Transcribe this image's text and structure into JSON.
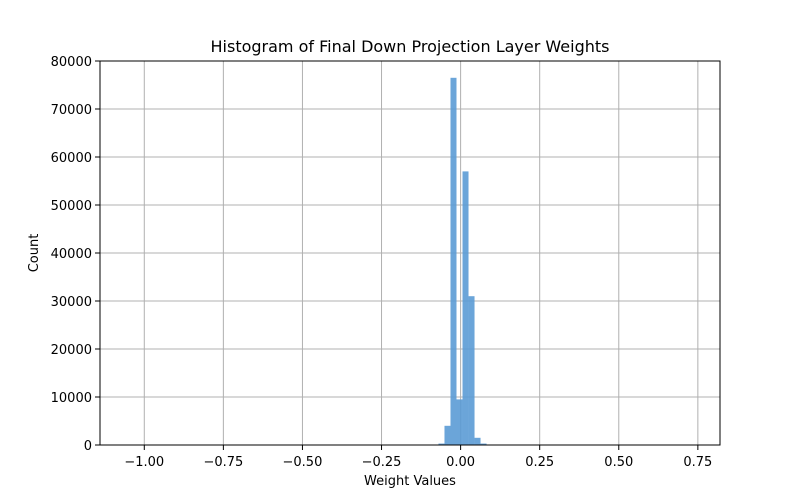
{
  "chart_data": {
    "type": "bar",
    "title": "Histogram of Final Down Projection Layer Weights",
    "xlabel": "Weight Values",
    "ylabel": "Count",
    "xlim": [
      -1.14,
      0.82
    ],
    "ylim": [
      0,
      80000
    ],
    "xticks": [
      -1.0,
      -0.75,
      -0.5,
      -0.25,
      0.0,
      0.25,
      0.5,
      0.75
    ],
    "xtick_labels": [
      "−1.00",
      "−0.75",
      "−0.50",
      "−0.25",
      "0.00",
      "0.25",
      "0.50",
      "0.75"
    ],
    "yticks": [
      0,
      10000,
      20000,
      30000,
      40000,
      50000,
      60000,
      70000,
      80000
    ],
    "ytick_labels": [
      "0",
      "10000",
      "20000",
      "30000",
      "40000",
      "50000",
      "60000",
      "70000",
      "80000"
    ],
    "grid": true,
    "bar_color": "#5b9bd5",
    "bins": [
      {
        "x0": -0.07,
        "x1": -0.051,
        "count": 300
      },
      {
        "x0": -0.051,
        "x1": -0.032,
        "count": 4000
      },
      {
        "x0": -0.032,
        "x1": -0.013,
        "count": 76500
      },
      {
        "x0": -0.013,
        "x1": 0.006,
        "count": 9500
      },
      {
        "x0": 0.006,
        "x1": 0.025,
        "count": 57000
      },
      {
        "x0": 0.025,
        "x1": 0.044,
        "count": 31000
      },
      {
        "x0": 0.044,
        "x1": 0.063,
        "count": 1500
      },
      {
        "x0": 0.063,
        "x1": 0.082,
        "count": 300
      },
      {
        "x0": 0.082,
        "x1": 0.101,
        "count": 60
      }
    ]
  }
}
